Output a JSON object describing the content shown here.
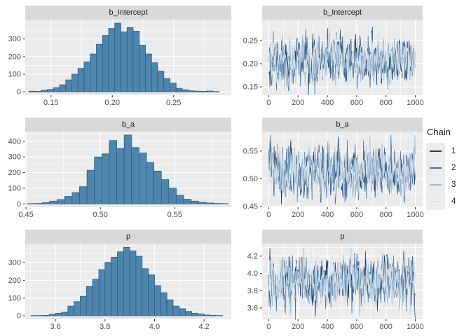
{
  "legend": {
    "title": "Chain",
    "items": [
      {
        "label": "1",
        "color": "#1d4168"
      },
      {
        "label": "2",
        "color": "#41729f"
      },
      {
        "label": "3",
        "color": "#9bb8d1"
      },
      {
        "label": "4",
        "color": "#d8e4ef"
      }
    ]
  },
  "colors": {
    "panel_bg": "#ebebeb",
    "strip_bg": "#d9d9d9",
    "grid": "#ffffff",
    "axis_text": "#4d4d4d",
    "tick_mark": "#333333",
    "strip_text": "#1a1a1a",
    "bar_fill": "#4e86ad",
    "bar_stroke": "#2e5f84",
    "legend_key_bg": "#ececec"
  },
  "chart_data": [
    {
      "type": "bar",
      "title": "b_Intercept",
      "column": "left",
      "bin_start": 0.132,
      "bin_width": 0.005,
      "values": [
        4,
        3,
        9,
        14,
        24,
        40,
        68,
        100,
        133,
        170,
        215,
        270,
        320,
        360,
        390,
        340,
        365,
        345,
        265,
        215,
        165,
        118,
        75,
        50,
        20,
        12,
        6,
        4,
        3,
        5,
        2
      ],
      "xlim": [
        0.129,
        0.297
      ],
      "ylim": [
        -19,
        410
      ],
      "xticks": [
        0.15,
        0.2,
        0.25
      ],
      "xtick_labels": [
        "0.15",
        "0.20",
        "0.25"
      ],
      "yticks": [
        0,
        100,
        200,
        300
      ],
      "ytick_labels": [
        "0",
        "100",
        "200",
        "300"
      ]
    },
    {
      "type": "line",
      "title": "b_Intercept",
      "column": "right",
      "n_iterations": 1000,
      "xlim": [
        -45,
        1050
      ],
      "ylim": [
        0.132,
        0.295
      ],
      "xticks": [
        0,
        200,
        400,
        600,
        800,
        1000
      ],
      "xtick_labels": [
        "0",
        "200",
        "400",
        "600",
        "800",
        "1000"
      ],
      "yticks": [
        0.15,
        0.2,
        0.25
      ],
      "ytick_labels": [
        "0.15",
        "0.20",
        "0.25"
      ],
      "mean": 0.206,
      "sd": 0.021,
      "chains": [
        {
          "name": "1",
          "seed": 11,
          "color": "#1d4168"
        },
        {
          "name": "2",
          "seed": 22,
          "color": "#41729f"
        },
        {
          "name": "3",
          "seed": 33,
          "color": "#9bb8d1"
        },
        {
          "name": "4",
          "seed": 44,
          "color": "#d8e4ef"
        }
      ]
    },
    {
      "type": "bar",
      "title": "b_a",
      "column": "left",
      "bin_start": 0.451,
      "bin_width": 0.005,
      "values": [
        2,
        3,
        8,
        18,
        28,
        48,
        72,
        110,
        215,
        300,
        320,
        405,
        355,
        440,
        360,
        325,
        265,
        210,
        155,
        100,
        55,
        30,
        18,
        10,
        6,
        3,
        2
      ],
      "xlim": [
        0.4495,
        0.588
      ],
      "ylim": [
        -21,
        462
      ],
      "xticks": [
        0.45,
        0.5,
        0.55
      ],
      "xtick_labels": [
        "0.45",
        "0.50",
        "0.55"
      ],
      "yticks": [
        0,
        100,
        200,
        300,
        400
      ],
      "ytick_labels": [
        "0",
        "100",
        "200",
        "300",
        "400"
      ]
    },
    {
      "type": "line",
      "title": "b_a",
      "column": "right",
      "n_iterations": 1000,
      "xlim": [
        -45,
        1050
      ],
      "ylim": [
        0.449,
        0.585
      ],
      "xticks": [
        0,
        200,
        400,
        600,
        800,
        1000
      ],
      "xtick_labels": [
        "0",
        "200",
        "400",
        "600",
        "800",
        "1000"
      ],
      "yticks": [
        0.45,
        0.5,
        0.55
      ],
      "ytick_labels": [
        "0.45",
        "0.50",
        "0.55"
      ],
      "mean": 0.513,
      "sd": 0.019,
      "chains": [
        {
          "name": "1",
          "seed": 55,
          "color": "#1d4168"
        },
        {
          "name": "2",
          "seed": 66,
          "color": "#41729f"
        },
        {
          "name": "3",
          "seed": 77,
          "color": "#9bb8d1"
        },
        {
          "name": "4",
          "seed": 88,
          "color": "#d8e4ef"
        }
      ]
    },
    {
      "type": "bar",
      "title": "p",
      "column": "left",
      "bin_start": 3.5,
      "bin_width": 0.025,
      "values": [
        2,
        2,
        3,
        8,
        15,
        20,
        55,
        80,
        110,
        165,
        205,
        260,
        300,
        330,
        360,
        385,
        365,
        335,
        265,
        230,
        170,
        130,
        90,
        55,
        40,
        25,
        15,
        10,
        5,
        3,
        2
      ],
      "xlim": [
        3.478,
        4.31
      ],
      "ylim": [
        -19,
        406
      ],
      "xticks": [
        3.6,
        3.8,
        4.0,
        4.2
      ],
      "xtick_labels": [
        "3.6",
        "3.8",
        "4.0",
        "4.2"
      ],
      "yticks": [
        0,
        100,
        200,
        300
      ],
      "ytick_labels": [
        "0",
        "100",
        "200",
        "300"
      ]
    },
    {
      "type": "line",
      "title": "p",
      "column": "right",
      "n_iterations": 1000,
      "xlim": [
        -45,
        1050
      ],
      "ylim": [
        3.47,
        4.345
      ],
      "xticks": [
        0,
        200,
        400,
        600,
        800,
        1000
      ],
      "xtick_labels": [
        "0",
        "200",
        "400",
        "600",
        "800",
        "1000"
      ],
      "yticks": [
        3.6,
        3.8,
        4.0,
        4.2
      ],
      "ytick_labels": [
        "3.6",
        "3.8",
        "4.0",
        "4.2"
      ],
      "mean": 3.905,
      "sd": 0.128,
      "chains": [
        {
          "name": "1",
          "seed": 99,
          "color": "#1d4168"
        },
        {
          "name": "2",
          "seed": 111,
          "color": "#41729f"
        },
        {
          "name": "3",
          "seed": 123,
          "color": "#9bb8d1"
        },
        {
          "name": "4",
          "seed": 135,
          "color": "#d8e4ef"
        }
      ]
    }
  ]
}
